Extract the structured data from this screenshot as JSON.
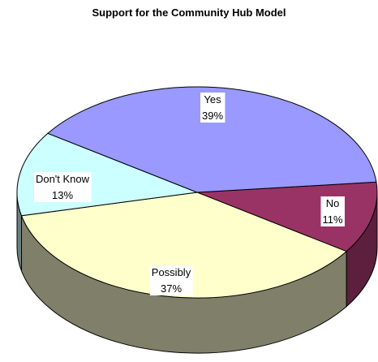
{
  "chart_data": {
    "type": "pie",
    "title": "Support for the Community Hub Model",
    "categories": [
      "Yes",
      "No",
      "Possibly",
      "Don't Know"
    ],
    "values": [
      39,
      11,
      37,
      13
    ],
    "labels": [
      "39%",
      "11%",
      "37%",
      "13%"
    ],
    "colors": {
      "Yes": "#9999ff",
      "No": "#993366",
      "Possibly": "#ffffcc",
      "Don't Know": "#ccffff"
    },
    "side_colors": {
      "Yes": "#5c5c99",
      "No": "#5c1f3d",
      "Possibly": "#80806a",
      "Don't Know": "#6a8080"
    },
    "style": "3d-exploded-none",
    "legend": "none"
  }
}
